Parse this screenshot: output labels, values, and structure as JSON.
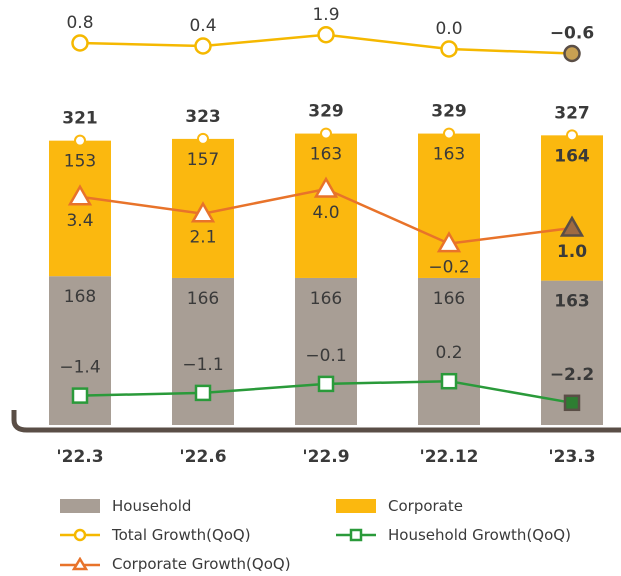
{
  "chart_data": {
    "type": "bar",
    "stacked": true,
    "categories": [
      "'22.3",
      "'22.6",
      "'22.9",
      "'22.12",
      "'23.3"
    ],
    "series": [
      {
        "name": "Household",
        "values": [
          168,
          166,
          166,
          166,
          163
        ],
        "color": "#a89e95"
      },
      {
        "name": "Corporate",
        "values": [
          153,
          157,
          163,
          163,
          164
        ],
        "color": "#fbb80f"
      }
    ],
    "totals": [
      321,
      323,
      329,
      329,
      327
    ],
    "lines": [
      {
        "name": "Total Growth(QoQ)",
        "labels": [
          "0.8",
          "0.4",
          "1.9",
          "0.0",
          "−0.6"
        ],
        "values": [
          0.8,
          0.4,
          1.9,
          0.0,
          -0.6
        ],
        "color": "#f5b800",
        "marker": "circle"
      },
      {
        "name": "Corporate Growth(QoQ)",
        "labels": [
          "3.4",
          "2.1",
          "4.0",
          "−0.2",
          "1.0"
        ],
        "values": [
          3.4,
          2.1,
          4.0,
          -0.2,
          1.0
        ],
        "color": "#e8732a",
        "marker": "triangle"
      },
      {
        "name": "Household Growth(QoQ)",
        "labels": [
          "−1.4",
          "−1.1",
          "−0.1",
          "0.2",
          "−2.2"
        ],
        "values": [
          -1.4,
          -1.1,
          -0.1,
          0.2,
          -2.2
        ],
        "color": "#2a9a3a",
        "marker": "square"
      }
    ],
    "legend": {
      "household": "Household",
      "corporate": "Corporate",
      "total_growth": "Total Growth(QoQ)",
      "household_growth": "Household Growth(QoQ)",
      "corporate_growth": "Corporate Growth(QoQ)"
    }
  }
}
